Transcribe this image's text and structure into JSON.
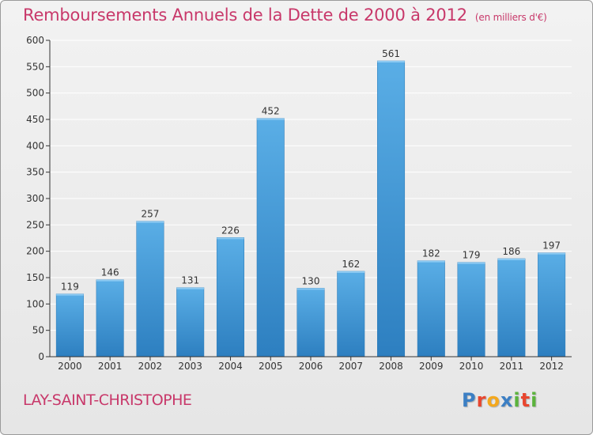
{
  "title": "Remboursements Annuels de la Dette de 2000 à 2012",
  "unit_note": "(en milliers d'€)",
  "commune": "LAY-SAINT-CHRISTOPHE",
  "logo": {
    "text": "Proxiti",
    "letters": [
      "P",
      "r",
      "o",
      "x",
      "i",
      "t",
      "i"
    ],
    "colors": [
      "#3c7fc4",
      "#e8462f",
      "#f4a81d",
      "#3c7fc4",
      "#5bb33c",
      "#e8462f",
      "#5bb33c"
    ]
  },
  "colors": {
    "accent": "#c8386a",
    "bar_top": "#5aaee6",
    "bar_bottom": "#2d7fc0",
    "grid": "#ffffff",
    "axis": "#333333"
  },
  "chart_data": {
    "type": "bar",
    "categories": [
      "2000",
      "2001",
      "2002",
      "2003",
      "2004",
      "2005",
      "2006",
      "2007",
      "2008",
      "2009",
      "2010",
      "2011",
      "2012"
    ],
    "values": [
      119,
      146,
      257,
      131,
      226,
      452,
      130,
      162,
      561,
      182,
      179,
      186,
      197
    ],
    "data_labels": [
      "119",
      "146",
      "257",
      "131",
      "226",
      "452",
      "130",
      "162",
      "561",
      "182",
      "179",
      "186",
      "197"
    ],
    "title": "Remboursements Annuels de la Dette de 2000 à 2012",
    "xlabel": "",
    "ylabel": "",
    "ylim": [
      0,
      600
    ],
    "y_ticks": [
      0,
      50,
      100,
      150,
      200,
      250,
      300,
      350,
      400,
      450,
      500,
      550,
      600
    ],
    "grid": true,
    "legend": "none"
  }
}
